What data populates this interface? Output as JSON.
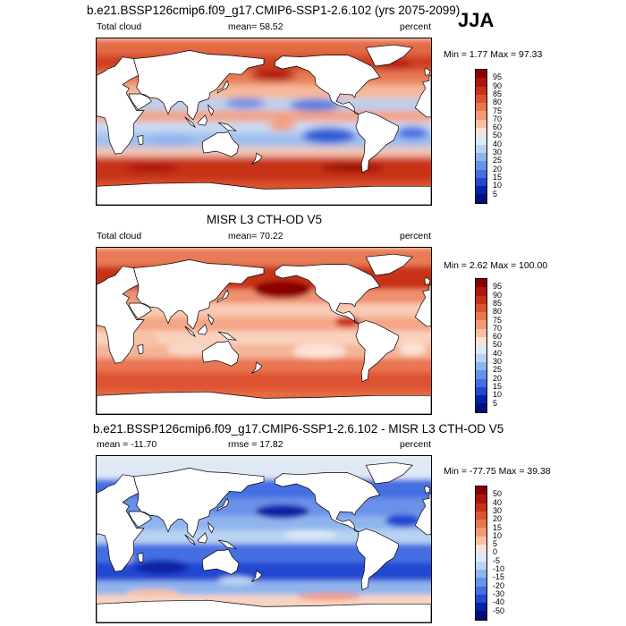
{
  "season": "JJA",
  "panels": [
    {
      "title": "b.e21.BSSP126cmip6.f09_g17.CMIP6-SSP1-2.6.102 (yrs 2075-2099)",
      "left_label": "Total cloud",
      "center_label": "mean=  58.52",
      "right_label": "percent",
      "minmax": "Min =   1.77 Max =  97.33",
      "colorbar": {
        "labels": [
          "95",
          "90",
          "85",
          "80",
          "75",
          "70",
          "60",
          "50",
          "40",
          "30",
          "25",
          "20",
          "15",
          "10",
          "5"
        ],
        "colors": [
          "#8b0000",
          "#b0140f",
          "#c83019",
          "#dd5230",
          "#ea7552",
          "#f49a7a",
          "#f8c0a6",
          "#fbe2d3",
          "#dce9f7",
          "#b8d2f2",
          "#8fb4ed",
          "#6a91e8",
          "#456ee2",
          "#2447d1",
          "#0820a8",
          "#00107a"
        ]
      },
      "map_style": "model"
    },
    {
      "title": "MISR L3 CTH-OD V5",
      "left_label": "Total cloud",
      "center_label": "mean=  70.22",
      "right_label": "percent",
      "minmax": "Min =   2.62 Max = 100.00",
      "colorbar": {
        "labels": [
          "95",
          "90",
          "85",
          "80",
          "75",
          "70",
          "60",
          "50",
          "40",
          "30",
          "25",
          "20",
          "15",
          "10",
          "5"
        ],
        "colors": [
          "#8b0000",
          "#b0140f",
          "#c83019",
          "#dd5230",
          "#ea7552",
          "#f49a7a",
          "#f8c0a6",
          "#fbe2d3",
          "#dce9f7",
          "#b8d2f2",
          "#8fb4ed",
          "#6a91e8",
          "#456ee2",
          "#2447d1",
          "#0820a8",
          "#00107a"
        ]
      },
      "map_style": "obs"
    },
    {
      "title": "b.e21.BSSP126cmip6.f09_g17.CMIP6-SSP1-2.6.102 - MISR L3 CTH-OD V5",
      "left_label": "mean = -11.70",
      "center_label": "rmse =  17.82",
      "right_label": "percent",
      "minmax": "Min = -77.75 Max =  39.38",
      "colorbar": {
        "labels": [
          "50",
          "40",
          "30",
          "20",
          "15",
          "10",
          "5",
          "0",
          "-5",
          "-10",
          "-15",
          "-20",
          "-30",
          "-40",
          "-50"
        ],
        "colors": [
          "#8b0000",
          "#b0140f",
          "#c83019",
          "#dd5230",
          "#ea7552",
          "#f49a7a",
          "#f8c0a6",
          "#fbe2d3",
          "#dce9f7",
          "#b8d2f2",
          "#8fb4ed",
          "#6a91e8",
          "#456ee2",
          "#2447d1",
          "#0820a8",
          "#00107a"
        ]
      },
      "map_style": "diff"
    }
  ]
}
